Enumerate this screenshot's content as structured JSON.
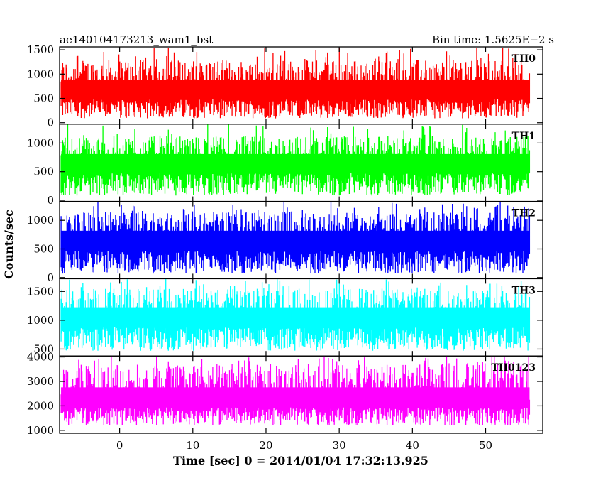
{
  "header": {
    "left_title": "ae140104173213_wam1_bst",
    "right_title": "Bin time: 1.5625E−2 s"
  },
  "axes": {
    "xlabel": "Time [sec] 0 = 2014/01/04 17:32:13.925",
    "ylabel": "Counts/sec"
  },
  "chart_data": {
    "type": "line",
    "title": "ae140104173213_wam1_bst",
    "subtitle": "Bin time: 1.5625E−2 s",
    "xlabel": "Time [sec] 0 = 2014/01/04 17:32:13.925",
    "ylabel": "Counts/sec",
    "xlim": [
      -8.2,
      57.8
    ],
    "x_range": [
      -8,
      56
    ],
    "x_ticks": [
      0,
      10,
      20,
      30,
      40,
      50
    ],
    "grid": false,
    "bin_time": 0.015625,
    "panels": [
      {
        "name": "TH0",
        "color": "#ff0000",
        "ylim": [
          -30,
          1560
        ],
        "y_ticks": [
          0,
          500,
          1000,
          1500
        ],
        "level": 650,
        "low": 90,
        "high": 1300,
        "peak": 1560
      },
      {
        "name": "TH1",
        "color": "#00ff00",
        "ylim": [
          -20,
          1330
        ],
        "y_ticks": [
          0,
          500,
          1000
        ],
        "level": 640,
        "low": 80,
        "high": 1120,
        "peak": 1330
      },
      {
        "name": "TH2",
        "color": "#0000ff",
        "ylim": [
          -20,
          1330
        ],
        "y_ticks": [
          0,
          500,
          1000
        ],
        "level": 640,
        "low": 70,
        "high": 1150,
        "peak": 1330
      },
      {
        "name": "TH3",
        "color": "#00ffff",
        "ylim": [
          380,
          1720
        ],
        "y_ticks": [
          500,
          1000,
          1500
        ],
        "level": 1050,
        "low": 470,
        "high": 1550,
        "peak": 1720
      },
      {
        "name": "TH0123",
        "color": "#ff00ff",
        "ylim": [
          880,
          4040
        ],
        "y_ticks": [
          1000,
          2000,
          3000,
          4000
        ],
        "level": 2250,
        "low": 1200,
        "high": 3700,
        "peak": 4040
      }
    ]
  }
}
